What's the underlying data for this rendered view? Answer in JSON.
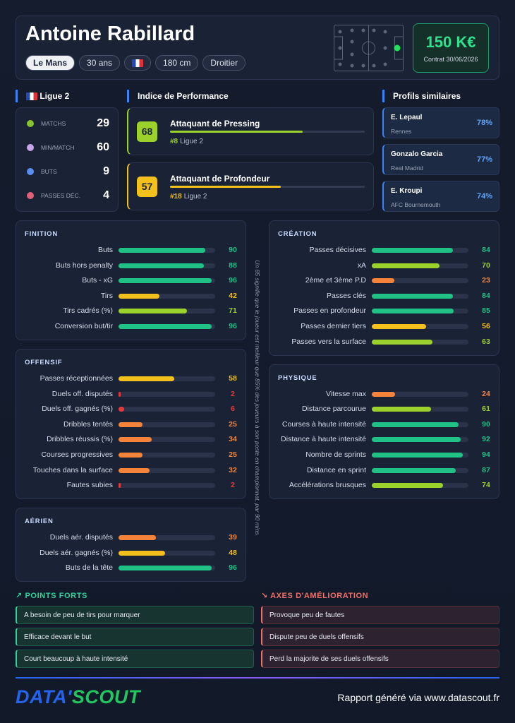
{
  "header": {
    "name": "Antoine Rabillard",
    "tags": [
      "Le Mans",
      "30 ans",
      "180 cm",
      "Droitier"
    ],
    "value": "150 K€",
    "contract": "Contrat 30/06/2026"
  },
  "league": {
    "title": "Ligue 2",
    "stats": [
      {
        "label": "MATCHS",
        "value": 29
      },
      {
        "label": "MIN/MATCH",
        "value": 60
      },
      {
        "label": "BUTS",
        "value": 9
      },
      {
        "label": "PASSES DÉC.",
        "value": 4
      }
    ]
  },
  "performance": {
    "title": "Indice de Performance",
    "items": [
      {
        "score": 68,
        "name": "Attaquant de Pressing",
        "rank": "#8",
        "league": "Ligue 2"
      },
      {
        "score": 57,
        "name": "Attaquant de Profondeur",
        "rank": "#18",
        "league": "Ligue 2"
      }
    ]
  },
  "similar": {
    "title": "Profils similaires",
    "items": [
      {
        "name": "E. Lepaul",
        "club": "Rennes",
        "score": "78%"
      },
      {
        "name": "Gonzalo Garcia",
        "club": "Real Madrid",
        "score": "77%"
      },
      {
        "name": "E. Kroupi",
        "club": "AFC Bournemouth",
        "score": "74%"
      }
    ]
  },
  "xlim": [
    0,
    100
  ],
  "columns": [
    [
      {
        "title": "FINITION",
        "rows": [
          {
            "label": "Buts",
            "value": 90
          },
          {
            "label": "Buts hors penalty",
            "value": 88
          },
          {
            "label": "Buts - xG",
            "value": 96
          },
          {
            "label": "Tirs",
            "value": 42
          },
          {
            "label": "Tirs cadrés (%)",
            "value": 71
          },
          {
            "label": "Conversion but/tir",
            "value": 96
          }
        ]
      },
      {
        "title": "OFFENSIF",
        "rows": [
          {
            "label": "Passes réceptionnées",
            "value": 58
          },
          {
            "label": "Duels off. disputés",
            "value": 2
          },
          {
            "label": "Duels off. gagnés (%)",
            "value": 6
          },
          {
            "label": "Dribbles tentés",
            "value": 25
          },
          {
            "label": "Dribbles réussis (%)",
            "value": 34
          },
          {
            "label": "Courses progressives",
            "value": 25
          },
          {
            "label": "Touches dans la surface",
            "value": 32
          },
          {
            "label": "Fautes subies",
            "value": 2
          }
        ]
      },
      {
        "title": "AÉRIEN",
        "rows": [
          {
            "label": "Duels aér. disputés",
            "value": 39
          },
          {
            "label": "Duels aér. gagnés (%)",
            "value": 48
          },
          {
            "label": "Buts de la tête",
            "value": 96
          }
        ]
      }
    ],
    [
      {
        "title": "CRÉATION",
        "rows": [
          {
            "label": "Passes décisives",
            "value": 84
          },
          {
            "label": "xA",
            "value": 70
          },
          {
            "label": "2ème et 3ème P.D",
            "value": 23
          },
          {
            "label": "Passes clés",
            "value": 84
          },
          {
            "label": "Passes en profondeur",
            "value": 85
          },
          {
            "label": "Passes dernier tiers",
            "value": 56
          },
          {
            "label": "Passes vers la surface",
            "value": 63
          }
        ]
      },
      {
        "title": "PHYSIQUE",
        "rows": [
          {
            "label": "Vitesse max",
            "value": 24
          },
          {
            "label": "Distance parcourue",
            "value": 61
          },
          {
            "label": "Courses à haute intensité",
            "value": 90
          },
          {
            "label": "Distance à haute intensité",
            "value": 92
          },
          {
            "label": "Nombre de sprints",
            "value": 94
          },
          {
            "label": "Distance en sprint",
            "value": 87
          },
          {
            "label": "Accélérations brusques",
            "value": 74
          }
        ]
      }
    ]
  ],
  "note": "Un 85 signifie que le joueur est meilleur que 85% des joueurs à son poste en championnat, par 90 mins",
  "strengths": {
    "title": "POINTS FORTS",
    "items": [
      "A besoin de peu de tirs pour marquer",
      "Efficace devant le but",
      "Court beaucoup à haute intensité"
    ]
  },
  "weaknesses": {
    "title": "AXES D'AMÉLIORATION",
    "items": [
      "Provoque peu de fautes",
      "Dispute peu de duels offensifs",
      "Perd la majorite de ses duels offensifs"
    ]
  },
  "footer": {
    "logo": [
      "DATA'",
      "SCOUT"
    ],
    "text": "Rapport généré via www.datascout.fr"
  }
}
